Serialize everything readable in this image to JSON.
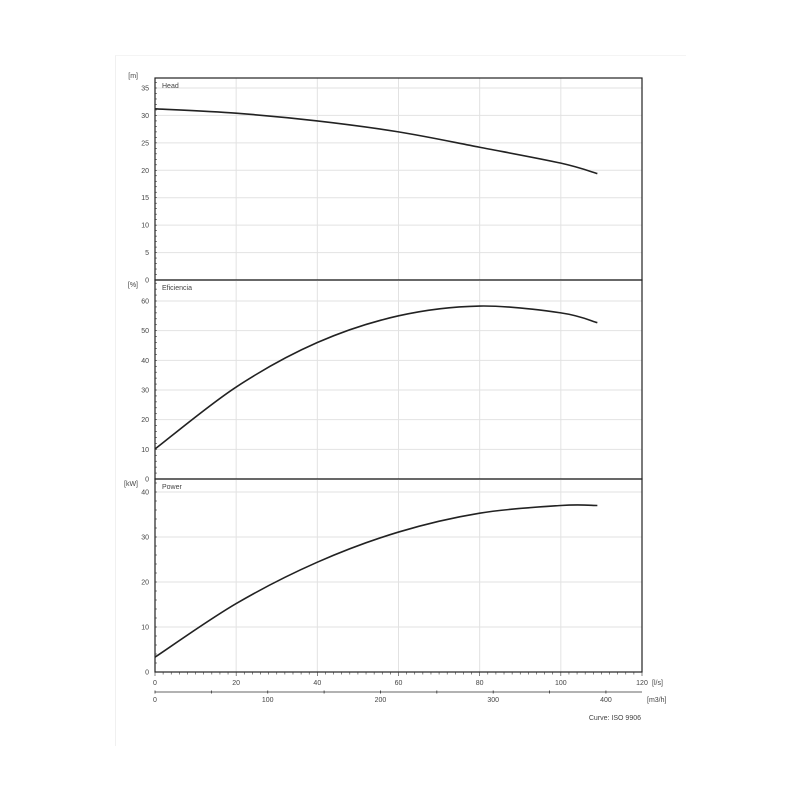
{
  "chart_data": [
    {
      "type": "line",
      "ylabel": "[m]",
      "series": [
        {
          "name": "Head",
          "x": [
            0,
            20,
            40,
            60,
            80,
            100,
            109
          ],
          "y": [
            31.2,
            30.4,
            29.0,
            27.0,
            24.2,
            21.3,
            19.4
          ]
        }
      ],
      "ylim": [
        0,
        35
      ],
      "yticks": [
        0,
        5,
        10,
        15,
        20,
        25,
        30,
        35
      ],
      "grid": true
    },
    {
      "type": "line",
      "ylabel": "[%]",
      "series": [
        {
          "name": "Eficiencia",
          "x": [
            0,
            20,
            40,
            60,
            80,
            100,
            109
          ],
          "y": [
            10.1,
            31,
            46,
            55,
            58.3,
            56,
            52.7
          ]
        }
      ],
      "ylim": [
        0,
        60
      ],
      "yticks": [
        0,
        10,
        20,
        30,
        40,
        50,
        60
      ],
      "grid": true
    },
    {
      "type": "line",
      "ylabel": "[kW]",
      "series": [
        {
          "name": "Power",
          "x": [
            0,
            20,
            40,
            60,
            80,
            100,
            109
          ],
          "y": [
            3.3,
            15.2,
            24.4,
            31.1,
            35.3,
            37.0,
            37.0
          ]
        }
      ],
      "ylim": [
        0,
        40
      ],
      "yticks": [
        0,
        10,
        20,
        30,
        40
      ],
      "grid": true
    }
  ],
  "x_axis": {
    "primary": {
      "unit": "[l/s]",
      "range": [
        0,
        120
      ],
      "ticks": [
        0,
        20,
        40,
        60,
        80,
        100,
        120
      ]
    },
    "secondary": {
      "unit": "[m3/h]",
      "ticks": [
        0,
        100,
        200,
        300,
        400
      ]
    }
  },
  "footer": "Curve: ISO 9906",
  "line_color": "#222222",
  "grid_color": "#e2e2e2"
}
